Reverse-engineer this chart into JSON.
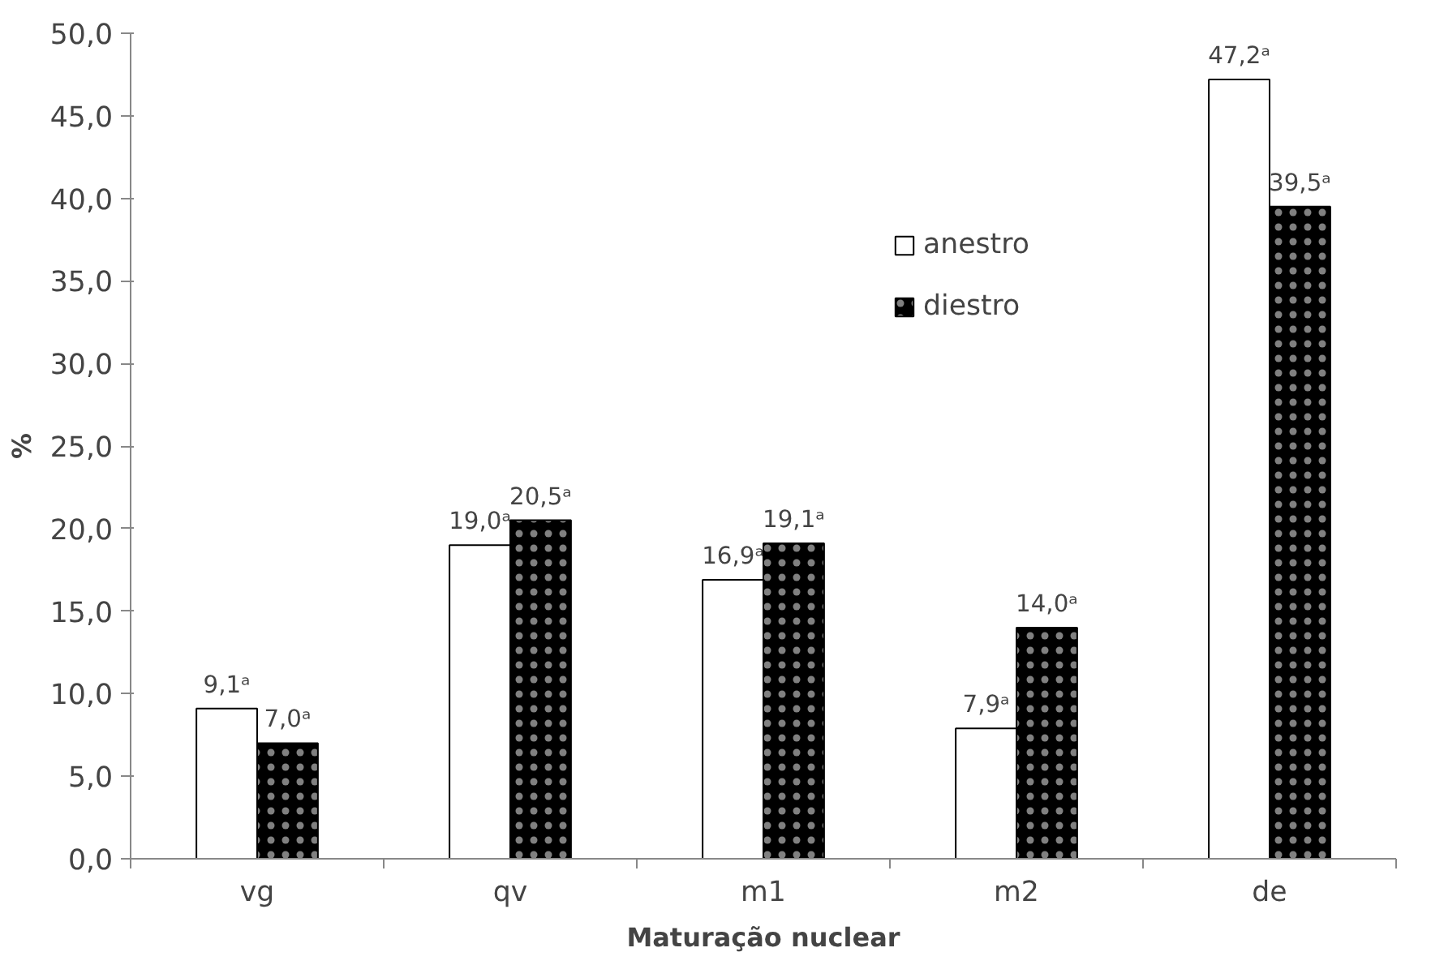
{
  "chart_data": {
    "type": "bar",
    "xlabel": "Maturação nuclear",
    "ylabel": "%",
    "categories": [
      "vg",
      "qv",
      "m1",
      "m2",
      "de"
    ],
    "series": [
      {
        "name": "anestro",
        "color": "#ffffff",
        "values": [
          9.1,
          19.0,
          16.9,
          7.9,
          47.2
        ],
        "value_labels": [
          "9,1ᵃ",
          "19,0ᵃ",
          "16,9ᵃ",
          "7,9ᵃ",
          "47,2ᵃ"
        ]
      },
      {
        "name": "diestro",
        "color": "#000000",
        "values": [
          7.0,
          20.5,
          19.1,
          14.0,
          39.5
        ],
        "value_labels": [
          "7,0ᵃ",
          "20,5ᵃ",
          "19,1ᵃ",
          "14,0ᵃ",
          "39,5ᵃ"
        ]
      }
    ],
    "ylim": [
      0,
      50
    ],
    "yticks": [
      {
        "value": 0,
        "label": "0,0"
      },
      {
        "value": 5,
        "label": "5,0"
      },
      {
        "value": 10,
        "label": "10,0"
      },
      {
        "value": 15,
        "label": "15,0"
      },
      {
        "value": 20,
        "label": "20,0"
      },
      {
        "value": 25,
        "label": "25,0"
      },
      {
        "value": 30,
        "label": "30,0"
      },
      {
        "value": 35,
        "label": "35,0"
      },
      {
        "value": 40,
        "label": "40,0"
      },
      {
        "value": 45,
        "label": "45,0"
      },
      {
        "value": 50,
        "label": "50,0"
      }
    ],
    "grid": false,
    "legend": "top right"
  }
}
